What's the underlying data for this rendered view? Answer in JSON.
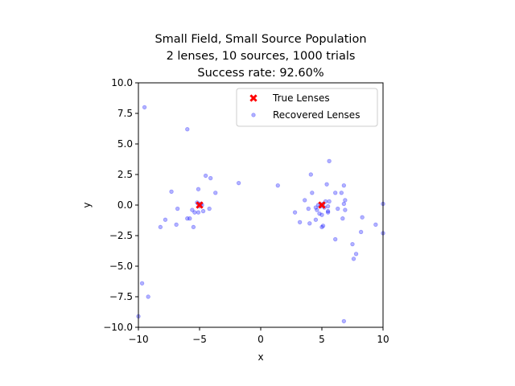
{
  "chart_data": {
    "type": "scatter",
    "title": [
      "Small Field, Small Source Population",
      "2 lenses, 10 sources, 1000 trials",
      "Success rate: 92.60%"
    ],
    "xlabel": "x",
    "ylabel": "y",
    "xlim": [
      -10,
      10
    ],
    "ylim": [
      -10,
      10
    ],
    "xticks": [
      -10,
      -5,
      0,
      5,
      10
    ],
    "xtick_labels": [
      "−10",
      "−5",
      "0",
      "5",
      "10"
    ],
    "yticks": [
      -10,
      -7.5,
      -5,
      -2.5,
      0,
      2.5,
      5,
      7.5,
      10
    ],
    "ytick_labels": [
      "−10.0",
      "−7.5",
      "−5.0",
      "−2.5",
      "0.0",
      "2.5",
      "5.0",
      "7.5",
      "10.0"
    ],
    "grid": false,
    "legend_position": "top-right",
    "series": [
      {
        "name": "True Lenses",
        "marker": "x-filled",
        "color": "#ff0000",
        "points": [
          [
            -5.0,
            0.0
          ],
          [
            5.0,
            0.0
          ]
        ]
      },
      {
        "name": "Recovered Lenses",
        "marker": "circle",
        "color": "#0000ff",
        "alpha": 0.3,
        "points": [
          [
            -9.5,
            8.0
          ],
          [
            -6.0,
            6.2
          ],
          [
            -1.8,
            1.8
          ],
          [
            1.4,
            1.6
          ],
          [
            -4.5,
            2.4
          ],
          [
            -4.1,
            2.2
          ],
          [
            -5.1,
            1.3
          ],
          [
            -3.7,
            1.0
          ],
          [
            -7.3,
            1.1
          ],
          [
            -5.2,
            0.2
          ],
          [
            -4.9,
            0.1
          ],
          [
            -5.0,
            -0.1
          ],
          [
            -4.8,
            0.0
          ],
          [
            -5.1,
            0.1
          ],
          [
            -6.8,
            -0.3
          ],
          [
            -4.2,
            -0.3
          ],
          [
            -5.6,
            -0.4
          ],
          [
            -5.4,
            -0.6
          ],
          [
            -5.1,
            -0.6
          ],
          [
            -4.7,
            -0.5
          ],
          [
            -6.0,
            -1.1
          ],
          [
            -5.8,
            -1.1
          ],
          [
            -7.8,
            -1.2
          ],
          [
            -6.9,
            -1.6
          ],
          [
            -8.2,
            -1.8
          ],
          [
            -5.5,
            -1.8
          ],
          [
            -9.7,
            -6.4
          ],
          [
            -9.2,
            -7.5
          ],
          [
            -10.0,
            -9.1
          ],
          [
            4.1,
            2.5
          ],
          [
            5.6,
            3.6
          ],
          [
            5.4,
            1.7
          ],
          [
            6.8,
            1.6
          ],
          [
            4.2,
            1.0
          ],
          [
            6.1,
            1.0
          ],
          [
            6.6,
            1.0
          ],
          [
            3.6,
            0.4
          ],
          [
            6.9,
            0.4
          ],
          [
            5.3,
            0.3
          ],
          [
            5.6,
            0.3
          ],
          [
            6.8,
            0.1
          ],
          [
            10.0,
            0.1
          ],
          [
            4.7,
            0.0
          ],
          [
            5.1,
            0.1
          ],
          [
            4.9,
            -0.1
          ],
          [
            5.2,
            -0.2
          ],
          [
            5.5,
            -0.1
          ],
          [
            4.5,
            -0.2
          ],
          [
            6.3,
            -0.3
          ],
          [
            3.9,
            -0.3
          ],
          [
            4.6,
            -0.4
          ],
          [
            5.5,
            -0.5
          ],
          [
            6.9,
            -0.4
          ],
          [
            2.8,
            -0.6
          ],
          [
            4.8,
            -0.7
          ],
          [
            5.0,
            -0.8
          ],
          [
            5.5,
            -0.6
          ],
          [
            6.7,
            -1.1
          ],
          [
            8.3,
            -1.0
          ],
          [
            3.2,
            -1.4
          ],
          [
            4.0,
            -1.5
          ],
          [
            4.5,
            -1.2
          ],
          [
            5.1,
            -1.7
          ],
          [
            5.0,
            -1.8
          ],
          [
            9.4,
            -1.6
          ],
          [
            8.2,
            -2.2
          ],
          [
            10.0,
            -2.3
          ],
          [
            6.1,
            -2.8
          ],
          [
            7.5,
            -3.2
          ],
          [
            7.8,
            -4.0
          ],
          [
            7.6,
            -4.4
          ],
          [
            6.8,
            -9.5
          ]
        ]
      }
    ]
  }
}
